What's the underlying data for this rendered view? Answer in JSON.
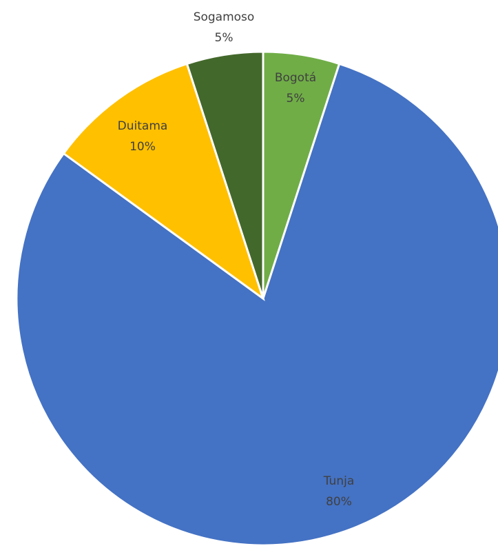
{
  "chart_data": {
    "type": "pie",
    "title": "",
    "slices": [
      {
        "name": "Bogotá",
        "value": 5,
        "label": "5%",
        "color": "#70ad47"
      },
      {
        "name": "Tunja",
        "value": 80,
        "label": "80%",
        "color": "#4472c4"
      },
      {
        "name": "Duitama",
        "value": 10,
        "label": "10%",
        "color": "#ffc000"
      },
      {
        "name": "Sogamoso",
        "value": 5,
        "label": "5%",
        "color": "#43682b"
      }
    ],
    "start_angle": "12 o'clock",
    "direction": "clockwise",
    "legend": "none"
  }
}
